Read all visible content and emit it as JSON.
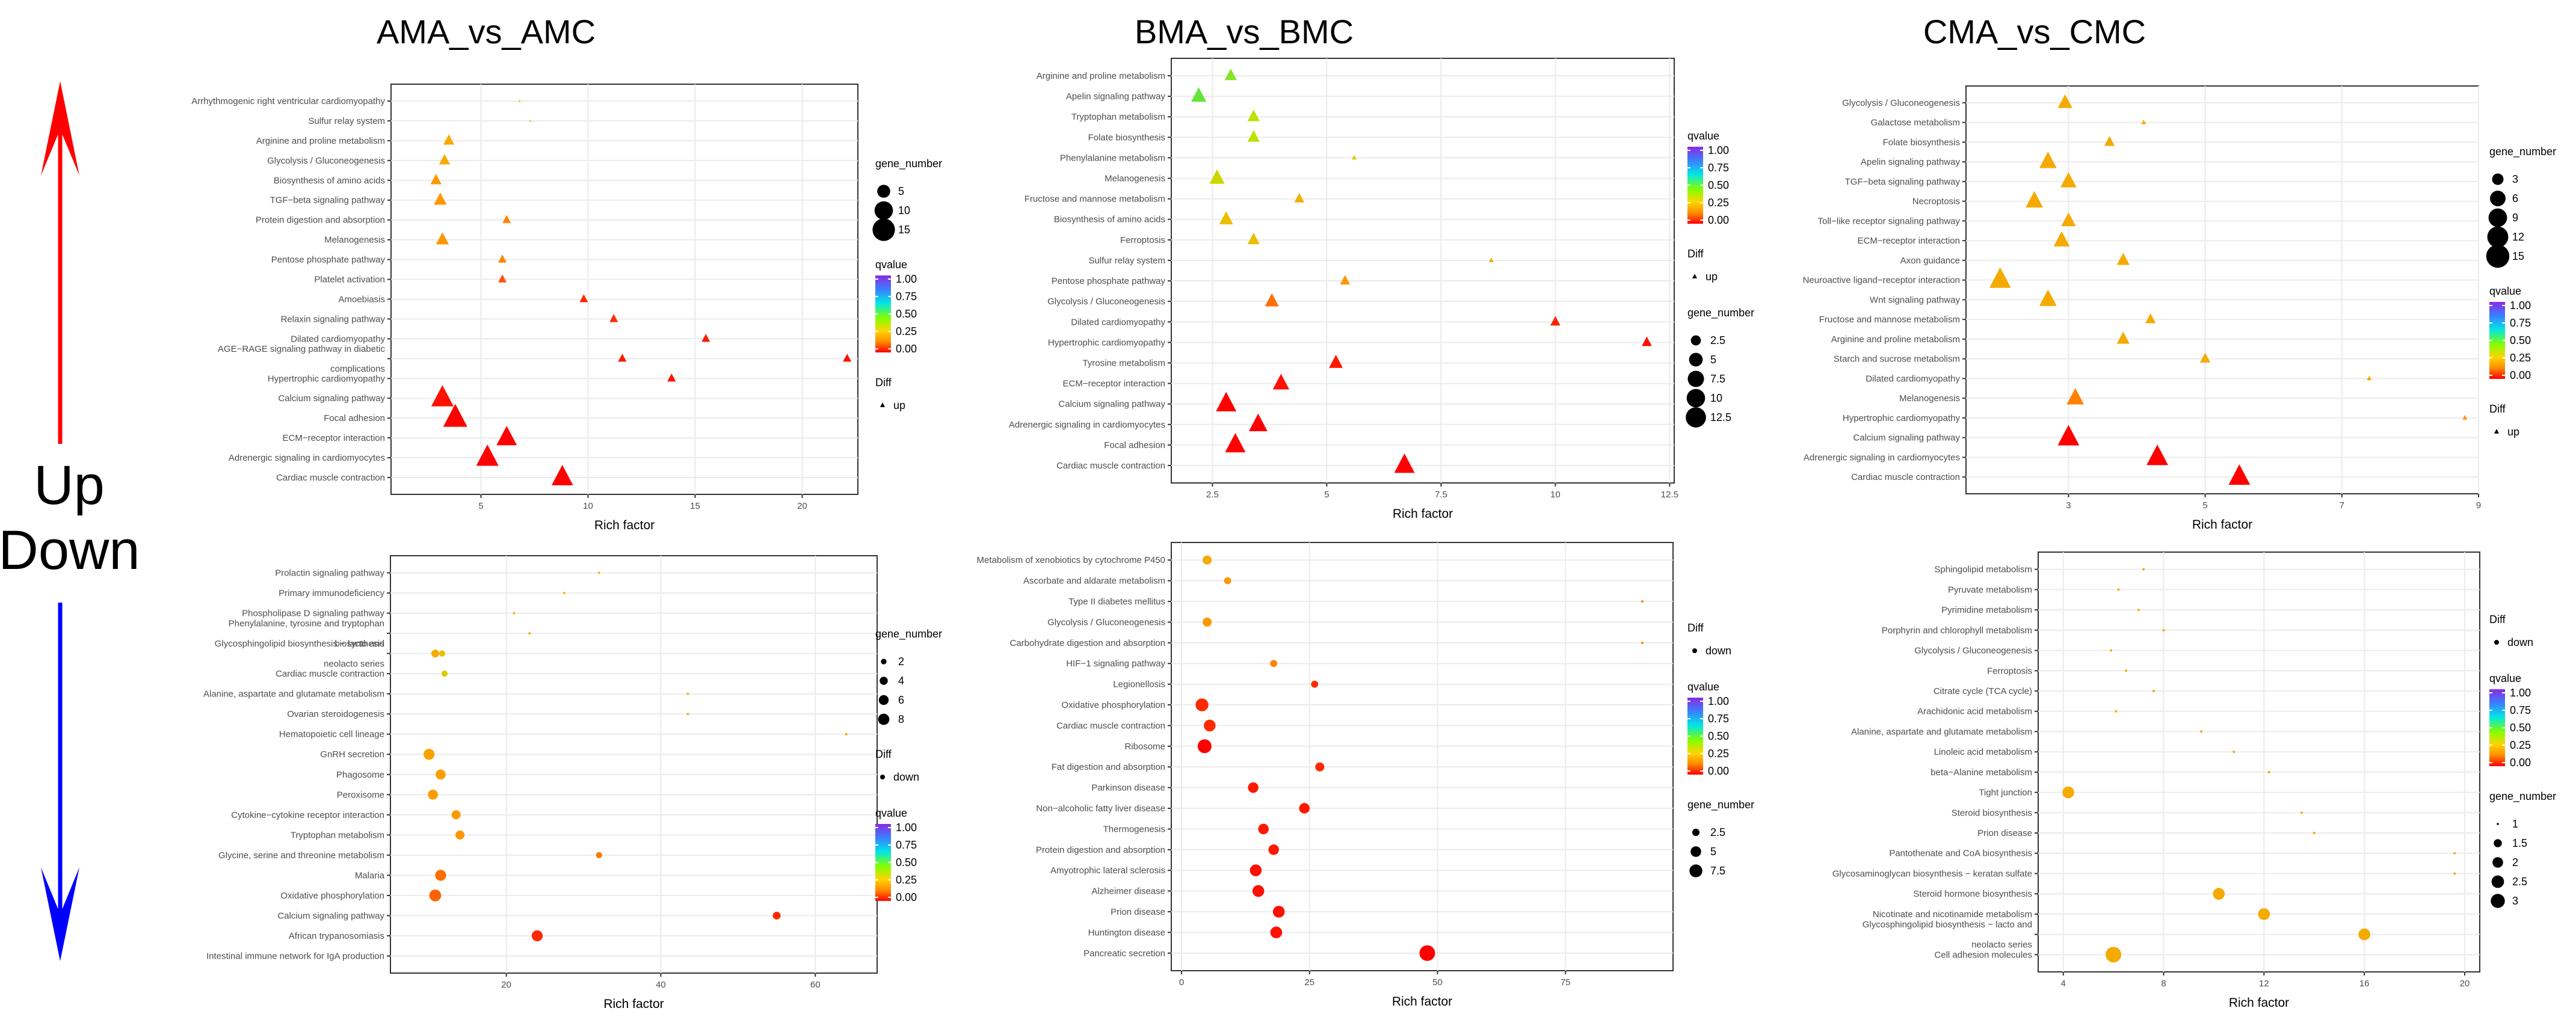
{
  "figure": {
    "up_label": "Up",
    "down_label": "Down",
    "up_arrow_color": "#ff0000",
    "down_arrow_color": "#0000ff"
  },
  "legend_labels": {
    "gene_number": "gene_number",
    "qvalue": "qvalue",
    "diff": "Diff"
  },
  "qvalue_scale": {
    "ticks": [
      "1.00",
      "0.75",
      "0.50",
      "0.25",
      "0.00"
    ],
    "colors": [
      "#8a2be2",
      "#3a7fff",
      "#00e6e6",
      "#80ff00",
      "#ffd400",
      "#ff8c00",
      "#ff0000"
    ]
  },
  "chart_data": [
    {
      "id": "p1",
      "type": "scatter",
      "comparison": "AMA_vs_AMC",
      "direction": "up",
      "marker": "triangle",
      "xlabel": "Rich factor",
      "xlim": [
        0.8,
        22.6
      ],
      "xticks": [
        5,
        10,
        15,
        20
      ],
      "gene_number_legend": [
        5,
        10,
        15
      ],
      "diff_legend": "up",
      "gene_range": [
        1,
        17
      ],
      "pathways": [
        "Arrhythmogenic right ventricular cardiomyopathy",
        "Sulfur relay system",
        "Arginine and proline metabolism",
        "Glycolysis / Gluconeogenesis",
        "Biosynthesis of amino acids",
        "TGF−beta signaling pathway",
        "Protein digestion and absorption",
        "Melanogenesis",
        "Pentose phosphate pathway",
        "Platelet activation",
        "Amoebiasis",
        "Relaxin signaling pathway",
        "Dilated cardiomyopathy",
        "AGE−RAGE signaling pathway in diabetic complications",
        "Hypertrophic cardiomyopathy",
        "Calcium signaling pathway",
        "Focal adhesion",
        "ECM−receptor interaction",
        "Adrenergic signaling in cardiomyocytes",
        "Cardiac muscle contraction"
      ],
      "rich_factor": [
        6.8,
        7.3,
        3.5,
        3.3,
        2.9,
        3.1,
        6.2,
        3.2,
        6.0,
        6.0,
        9.8,
        11.2,
        15.5,
        11.6,
        22.1,
        13.9,
        3.2,
        3.8,
        6.2,
        5.3,
        8.8
      ],
      "rows": [
        0,
        1,
        2,
        3,
        4,
        5,
        6,
        7,
        8,
        9,
        10,
        11,
        12,
        13,
        13,
        14,
        15,
        16,
        17,
        18,
        19
      ],
      "gene_number": [
        1,
        1,
        3,
        3,
        3,
        4,
        2,
        4,
        2,
        2,
        2,
        2,
        2,
        2,
        2,
        2,
        12,
        14,
        10,
        12,
        11
      ],
      "qvalue": [
        0.5,
        0.45,
        0.3,
        0.3,
        0.25,
        0.25,
        0.2,
        0.25,
        0.2,
        0.1,
        0.05,
        0.05,
        0.03,
        0.03,
        0.02,
        0.02,
        0.02,
        0.0,
        0.0,
        0.0,
        0.0
      ]
    },
    {
      "id": "p2",
      "type": "scatter",
      "comparison": "BMA_vs_BMC",
      "direction": "up",
      "marker": "triangle",
      "xlabel": "Rich factor",
      "xlim": [
        1.6,
        12.6
      ],
      "xticks": [
        2.5,
        5.0,
        7.5,
        10.0,
        12.5
      ],
      "gene_number_legend": [
        2.5,
        5.0,
        7.5,
        10.0,
        12.5
      ],
      "diff_legend": "up",
      "gene_range": [
        1,
        13
      ],
      "pathways": [
        "Arginine and proline metabolism",
        "Apelin signaling pathway",
        "Tryptophan metabolism",
        "Folate biosynthesis",
        "Phenylalanine metabolism",
        "Melanogenesis",
        "Fructose and mannose metabolism",
        "Biosynthesis of amino acids",
        "Ferroptosis",
        "Sulfur relay system",
        "Pentose phosphate pathway",
        "Glycolysis / Gluconeogenesis",
        "Dilated cardiomyopathy",
        "Hypertrophic cardiomyopathy",
        "Tyrosine metabolism",
        "ECM−receptor interaction",
        "Calcium signaling pathway",
        "Adrenergic signaling in cardiomyocytes",
        "Focal adhesion",
        "Cardiac muscle contraction"
      ],
      "rich_factor": [
        2.9,
        2.2,
        3.4,
        3.4,
        5.6,
        2.6,
        4.4,
        2.8,
        3.4,
        8.6,
        5.4,
        3.8,
        10.0,
        12.0,
        5.2,
        4.0,
        2.8,
        3.5,
        3.0,
        6.7
      ],
      "rows": [
        0,
        1,
        2,
        3,
        4,
        5,
        6,
        7,
        8,
        9,
        10,
        11,
        12,
        13,
        14,
        15,
        16,
        17,
        18,
        19
      ],
      "gene_number": [
        3,
        5,
        3,
        3,
        1,
        5,
        2,
        4,
        3,
        1,
        2,
        4,
        2,
        2,
        4,
        6,
        10,
        8,
        10,
        10
      ],
      "qvalue": [
        0.55,
        0.58,
        0.5,
        0.5,
        0.42,
        0.45,
        0.32,
        0.35,
        0.35,
        0.3,
        0.25,
        0.15,
        0.04,
        0.02,
        0.03,
        0.02,
        0.0,
        0.0,
        0.0,
        0.0
      ]
    },
    {
      "id": "p3",
      "type": "scatter",
      "comparison": "CMA_vs_CMC",
      "direction": "up",
      "marker": "triangle",
      "xlabel": "Rich factor",
      "xlim": [
        1.5,
        9.0
      ],
      "xticks": [
        3,
        5,
        7,
        9
      ],
      "gene_number_legend": [
        3,
        6,
        9,
        12,
        15
      ],
      "diff_legend": "up",
      "gene_range": [
        1,
        16
      ],
      "pathways": [
        "Glycolysis / Gluconeogenesis",
        "Galactose metabolism",
        "Folate biosynthesis",
        "Apelin signaling pathway",
        "TGF−beta signaling pathway",
        "Necroptosis",
        "Toll−like receptor signaling pathway",
        "ECM−receptor interaction",
        "Axon guidance",
        "Neuroactive ligand−receptor interaction",
        "Wnt signaling pathway",
        "Fructose and mannose metabolism",
        "Arginine and proline metabolism",
        "Starch and sucrose metabolism",
        "Dilated cardiomyopathy",
        "Melanogenesis",
        "Hypertrophic cardiomyopathy",
        "Calcium signaling pathway",
        "Adrenergic signaling in cardiomyocytes",
        "Cardiac muscle contraction"
      ],
      "rich_factor": [
        2.95,
        4.1,
        3.6,
        2.7,
        3.0,
        2.5,
        3.0,
        2.9,
        3.8,
        2.0,
        2.7,
        4.2,
        3.8,
        5.0,
        7.4,
        3.1,
        8.8,
        3.0,
        4.3,
        5.5
      ],
      "rows": [
        0,
        1,
        2,
        3,
        4,
        5,
        6,
        7,
        8,
        9,
        10,
        11,
        12,
        13,
        14,
        15,
        16,
        17,
        18,
        19
      ],
      "gene_number": [
        4,
        1,
        2,
        6,
        5,
        6,
        4,
        5,
        3,
        10,
        6,
        2,
        3,
        2,
        1,
        6,
        1,
        10,
        10,
        10
      ],
      "qvalue": [
        0.3,
        0.3,
        0.3,
        0.3,
        0.3,
        0.3,
        0.3,
        0.3,
        0.3,
        0.3,
        0.3,
        0.3,
        0.3,
        0.3,
        0.3,
        0.2,
        0.25,
        0.0,
        0.0,
        0.0
      ]
    },
    {
      "id": "p4",
      "type": "scatter",
      "comparison": "AMA_vs_AMC",
      "direction": "down",
      "marker": "circle",
      "xlabel": "Rich factor",
      "xlim": [
        5,
        68
      ],
      "xticks": [
        20,
        40,
        60
      ],
      "gene_number_legend": [
        2,
        4,
        6,
        8
      ],
      "diff_legend": "down",
      "gene_range": [
        1,
        9
      ],
      "pathways": [
        "Prolactin signaling pathway",
        "Primary immunodeficiency",
        "Phospholipase D signaling pathway",
        "Phenylalanine, tyrosine and tryptophan biosynthesis",
        "Glycosphingolipid biosynthesis − lacto and neolacto series",
        "Cardiac muscle contraction",
        "Alanine, aspartate and glutamate metabolism",
        "Ovarian steroidogenesis",
        "Hematopoietic cell lineage",
        "GnRH secretion",
        "Phagosome",
        "Peroxisome",
        "Cytokine−cytokine receptor interaction",
        "Tryptophan metabolism",
        "Glycine, serine and threonine metabolism",
        "Malaria",
        "Oxidative phosphorylation",
        "Calcium signaling pathway",
        "African trypanosomiasis",
        "Intestinal immune network for IgA production"
      ],
      "rich_factor": [
        32.0,
        27.5,
        21.0,
        23.0,
        11.7,
        10.8,
        12.0,
        43.5,
        43.5,
        64.0,
        10.0,
        11.5,
        10.5,
        13.5,
        14.0,
        32.0,
        11.5,
        10.8,
        55.0,
        24.0
      ],
      "rows": [
        0,
        1,
        2,
        3,
        4,
        4,
        5,
        6,
        7,
        8,
        9,
        10,
        11,
        12,
        13,
        14,
        15,
        16,
        17,
        18,
        19
      ],
      "gene_number": [
        1,
        1,
        1,
        1,
        2,
        3,
        2,
        1,
        1,
        1,
        6,
        5,
        5,
        4,
        4,
        2,
        6,
        7,
        3,
        6
      ],
      "qvalue": [
        0.35,
        0.35,
        0.33,
        0.33,
        0.35,
        0.3,
        0.4,
        0.32,
        0.32,
        0.3,
        0.28,
        0.27,
        0.27,
        0.26,
        0.25,
        0.18,
        0.15,
        0.12,
        0.05,
        0.05
      ]
    },
    {
      "id": "p5",
      "type": "scatter",
      "comparison": "BMA_vs_BMC",
      "direction": "down",
      "marker": "circle",
      "xlabel": "Rich factor",
      "xlim": [
        -2,
        96
      ],
      "xticks": [
        0,
        25,
        50,
        75
      ],
      "gene_number_legend": [
        2.5,
        5.0,
        7.5
      ],
      "diff_legend": "down",
      "gene_range": [
        1,
        9
      ],
      "pathways": [
        "Metabolism of xenobiotics by cytochrome P450",
        "Ascorbate and aldarate metabolism",
        "Type II diabetes mellitus",
        "Glycolysis / Gluconeogenesis",
        "Carbohydrate digestion and absorption",
        "HIF−1 signaling pathway",
        "Legionellosis",
        "Oxidative phosphorylation",
        "Cardiac muscle contraction",
        "Ribosome",
        "Fat digestion and absorption",
        "Parkinson disease",
        "Non−alcoholic fatty liver disease",
        "Thermogenesis",
        "Protein digestion and absorption",
        "Amyotrophic lateral sclerosis",
        "Alzheimer disease",
        "Prion disease",
        "Huntington disease",
        "Pancreatic secretion"
      ],
      "rich_factor": [
        5.0,
        9.0,
        90.0,
        5.0,
        90.0,
        18.0,
        26.0,
        4.0,
        5.5,
        4.5,
        27.0,
        14.0,
        24.0,
        16.0,
        18.0,
        14.5,
        15.0,
        19.0,
        18.5,
        48.0
      ],
      "rows": [
        0,
        1,
        2,
        3,
        4,
        5,
        6,
        7,
        8,
        9,
        10,
        11,
        12,
        13,
        14,
        15,
        16,
        17,
        18,
        19
      ],
      "gene_number": [
        3,
        2,
        1,
        3,
        1,
        2,
        2,
        6,
        5,
        7,
        3,
        4,
        4,
        4,
        4,
        5,
        5,
        5,
        5,
        9
      ],
      "qvalue": [
        0.3,
        0.25,
        0.2,
        0.25,
        0.2,
        0.2,
        0.05,
        0.05,
        0.05,
        0.0,
        0.05,
        0.03,
        0.03,
        0.03,
        0.03,
        0.02,
        0.02,
        0.02,
        0.02,
        0.0
      ]
    },
    {
      "id": "p6",
      "type": "scatter",
      "comparison": "CMA_vs_CMC",
      "direction": "down",
      "marker": "circle",
      "xlabel": "Rich factor",
      "xlim": [
        3.0,
        20.6
      ],
      "xticks": [
        4,
        8,
        12,
        16,
        20
      ],
      "gene_number_legend": [
        1.0,
        1.5,
        2.0,
        2.5,
        3.0
      ],
      "diff_legend": "down",
      "gene_range": [
        1,
        3
      ],
      "pathways": [
        "Sphingolipid metabolism",
        "Pyruvate metabolism",
        "Pyrimidine metabolism",
        "Porphyrin and chlorophyll metabolism",
        "Glycolysis / Gluconeogenesis",
        "Ferroptosis",
        "Citrate cycle (TCA cycle)",
        "Arachidonic acid metabolism",
        "Alanine, aspartate and glutamate metabolism",
        "Linoleic acid metabolism",
        "beta−Alanine metabolism",
        "Tight junction",
        "Steroid biosynthesis",
        "Prion disease",
        "Pantothenate and CoA biosynthesis",
        "Glycosaminoglycan biosynthesis − keratan sulfate",
        "Steroid hormone biosynthesis",
        "Nicotinate and nicotinamide metabolism",
        "Glycosphingolipid biosynthesis − lacto and neolacto series",
        "Cell adhesion molecules"
      ],
      "rich_factor": [
        7.2,
        6.2,
        7.0,
        8.0,
        5.9,
        6.5,
        7.6,
        6.1,
        9.5,
        10.8,
        12.2,
        4.2,
        13.5,
        14.0,
        19.6,
        19.6,
        10.2,
        12.0,
        16.0,
        6.0
      ],
      "rows": [
        0,
        1,
        2,
        3,
        4,
        5,
        6,
        7,
        8,
        9,
        10,
        11,
        12,
        13,
        14,
        15,
        16,
        17,
        18,
        19
      ],
      "gene_number": [
        1,
        1,
        1,
        1,
        1,
        1,
        1,
        1,
        1,
        1,
        1,
        2,
        1,
        1,
        1,
        1,
        2,
        2,
        2,
        3
      ],
      "qvalue": [
        0.3,
        0.3,
        0.3,
        0.3,
        0.3,
        0.3,
        0.3,
        0.3,
        0.3,
        0.3,
        0.3,
        0.3,
        0.3,
        0.3,
        0.3,
        0.3,
        0.3,
        0.3,
        0.3,
        0.3
      ]
    }
  ]
}
